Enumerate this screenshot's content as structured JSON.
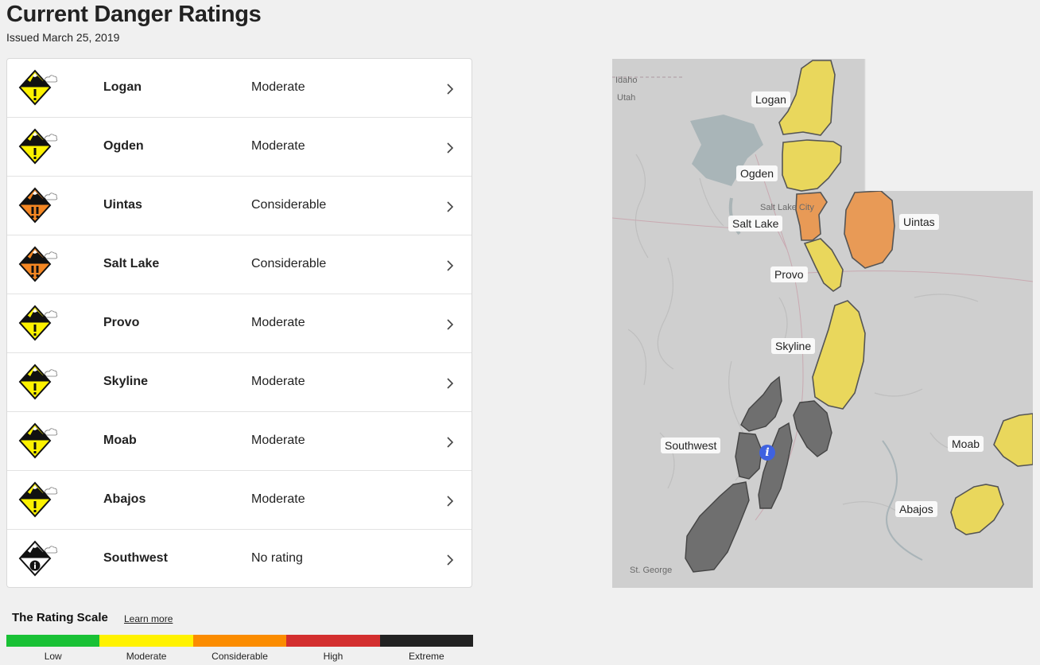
{
  "header": {
    "title": "Current Danger Ratings",
    "issued": "Issued March 25, 2019"
  },
  "regions": [
    {
      "name": "Logan",
      "rating": "Moderate",
      "color": "#fdf200",
      "exclamations": 1
    },
    {
      "name": "Ogden",
      "rating": "Moderate",
      "color": "#fdf200",
      "exclamations": 1
    },
    {
      "name": "Uintas",
      "rating": "Considerable",
      "color": "#f58723",
      "exclamations": 2
    },
    {
      "name": "Salt Lake",
      "rating": "Considerable",
      "color": "#f58723",
      "exclamations": 2
    },
    {
      "name": "Provo",
      "rating": "Moderate",
      "color": "#fdf200",
      "exclamations": 1
    },
    {
      "name": "Skyline",
      "rating": "Moderate",
      "color": "#fdf200",
      "exclamations": 1
    },
    {
      "name": "Moab",
      "rating": "Moderate",
      "color": "#fdf200",
      "exclamations": 1
    },
    {
      "name": "Abajos",
      "rating": "Moderate",
      "color": "#fdf200",
      "exclamations": 1
    },
    {
      "name": "Southwest",
      "rating": "No rating",
      "color": "#ffffff",
      "exclamations": 0
    }
  ],
  "scale": {
    "title": "The Rating Scale",
    "learn_more": "Learn more",
    "levels": [
      {
        "label": "Low",
        "color": "#19c135"
      },
      {
        "label": "Moderate",
        "color": "#fff200"
      },
      {
        "label": "Considerable",
        "color": "#fb8c00"
      },
      {
        "label": "High",
        "color": "#d32f2f"
      },
      {
        "label": "Extreme",
        "color": "#222222"
      }
    ]
  },
  "map": {
    "base_labels": {
      "idaho": "Idaho",
      "utah": "Utah",
      "salt_lake_city": "Salt Lake City",
      "st_george": "St. George"
    },
    "region_labels": {
      "logan": "Logan",
      "ogden": "Ogden",
      "salt_lake": "Salt Lake",
      "uintas": "Uintas",
      "provo": "Provo",
      "skyline": "Skyline",
      "southwest": "Southwest",
      "moab": "Moab",
      "abajos": "Abajos"
    },
    "colors": {
      "moderate": "#e9d75c",
      "considerable": "#e89a56",
      "no_rating": "#6f6f6f"
    },
    "info_marker": "i"
  }
}
